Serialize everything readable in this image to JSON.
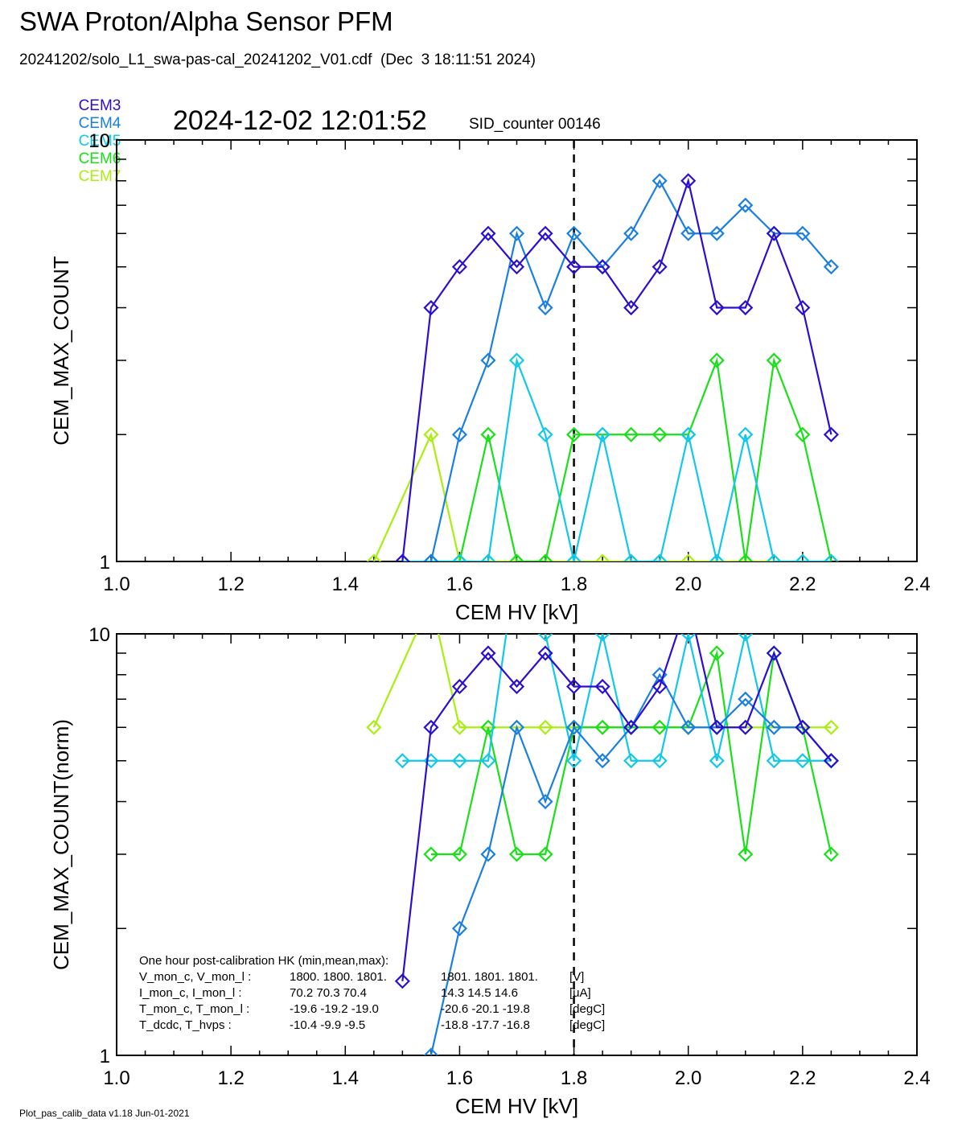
{
  "title": "SWA Proton/Alpha Sensor PFM",
  "file_info": "20241202/solo_L1_swa-pas-cal_20241202_V01.cdf  (Dec  3 18:11:51 2024)",
  "timestamp": "2024-12-02 12:01:52",
  "sid_counter": "SID_counter 00146",
  "footer": "Plot_pas_calib_data v1.18 Jun-01-2021",
  "legend": [
    {
      "name": "CEM3",
      "color": "#2a0fd0"
    },
    {
      "name": "CEM4",
      "color": "#1a7fe0"
    },
    {
      "name": "CEM5",
      "color": "#12c8e8"
    },
    {
      "name": "CEM6",
      "color": "#19e019"
    },
    {
      "name": "CEM7",
      "color": "#aaee10"
    }
  ],
  "hk": {
    "heading": "One hour post-calibration HK (min,mean,max):",
    "rows": [
      {
        "label": "V_mon_c, V_mon_l :",
        "c": "1800.  1800.  1801.",
        "l": "1801.  1801.  1801.",
        "unit": "[V]"
      },
      {
        "label": "I_mon_c,  I_mon_l :",
        "c": "70.2   70.3   70.4",
        "l": "14.3   14.5   14.6",
        "unit": "[uA]"
      },
      {
        "label": "T_mon_c, T_mon_l :",
        "c": "-19.6  -19.2  -19.0",
        "l": "-20.6  -20.1  -19.8",
        "unit": "[degC]"
      },
      {
        "label": "T_dcdc,    T_hvps :",
        "c": "-10.4   -9.9   -9.5",
        "l": "-18.8  -17.7  -16.8",
        "unit": "[degC]"
      }
    ]
  },
  "chart_data": [
    {
      "type": "line",
      "xlabel": "CEM HV [kV]",
      "ylabel": "CEM_MAX_COUNT",
      "xlim": [
        1.0,
        2.4
      ],
      "ylim": [
        1,
        10
      ],
      "yscale": "log",
      "xticks": [
        "1.0",
        "1.2",
        "1.4",
        "1.6",
        "1.8",
        "2.0",
        "2.2",
        "2.4"
      ],
      "yticks": [
        "1",
        "10"
      ],
      "vline": 1.8,
      "x": [
        1.45,
        1.5,
        1.55,
        1.6,
        1.65,
        1.7,
        1.75,
        1.8,
        1.85,
        1.9,
        1.95,
        2.0,
        2.05,
        2.1,
        2.15,
        2.2,
        2.25
      ],
      "series": [
        {
          "name": "CEM3",
          "color": "#2a0fd0",
          "values": [
            null,
            1,
            4,
            5,
            6,
            5,
            6,
            5,
            5,
            4,
            5,
            8,
            4,
            4,
            6,
            4,
            2
          ]
        },
        {
          "name": "CEM4",
          "color": "#1a7fe0",
          "values": [
            null,
            null,
            1,
            2,
            3,
            6,
            4,
            6,
            5,
            6,
            8,
            6,
            6,
            7,
            6,
            6,
            5
          ]
        },
        {
          "name": "CEM5",
          "color": "#12c8e8",
          "values": [
            null,
            1,
            1,
            1,
            1,
            3,
            2,
            1,
            2,
            1,
            1,
            2,
            1,
            2,
            1,
            1,
            1
          ]
        },
        {
          "name": "CEM6",
          "color": "#19e019",
          "values": [
            null,
            null,
            1,
            1,
            2,
            1,
            1,
            2,
            2,
            2,
            2,
            2,
            3,
            1,
            3,
            2,
            1
          ]
        },
        {
          "name": "CEM7",
          "color": "#aaee10",
          "values": [
            1,
            null,
            2,
            1,
            1,
            1,
            1,
            1,
            1,
            1,
            1,
            1,
            1,
            1,
            1,
            1,
            1
          ]
        }
      ]
    },
    {
      "type": "line",
      "xlabel": "CEM HV [kV]",
      "ylabel": "CEM_MAX_COUNT(norm)",
      "xlim": [
        1.0,
        2.4
      ],
      "ylim": [
        1,
        10
      ],
      "yscale": "log",
      "xticks": [
        "1.0",
        "1.2",
        "1.4",
        "1.6",
        "1.8",
        "2.0",
        "2.2",
        "2.4"
      ],
      "yticks": [
        "1",
        "10"
      ],
      "vline": 1.8,
      "x": [
        1.45,
        1.5,
        1.55,
        1.6,
        1.65,
        1.7,
        1.75,
        1.8,
        1.85,
        1.9,
        1.95,
        2.0,
        2.05,
        2.1,
        2.15,
        2.2,
        2.25
      ],
      "series": [
        {
          "name": "CEM3",
          "color": "#2a0fd0",
          "values": [
            null,
            1.5,
            6,
            7.5,
            9,
            7.5,
            9,
            7.5,
            7.5,
            6,
            7.5,
            12,
            6,
            6,
            9,
            6,
            5
          ]
        },
        {
          "name": "CEM4",
          "color": "#1a7fe0",
          "values": [
            null,
            null,
            1,
            2,
            3,
            6,
            4,
            6,
            5,
            6,
            8,
            6,
            6,
            7,
            6,
            6,
            5
          ]
        },
        {
          "name": "CEM5",
          "color": "#12c8e8",
          "values": [
            null,
            5,
            5,
            5,
            5,
            15,
            10,
            5,
            10,
            5,
            5,
            10,
            5,
            10,
            5,
            5,
            5
          ]
        },
        {
          "name": "CEM6",
          "color": "#19e019",
          "values": [
            null,
            null,
            3,
            3,
            6,
            3,
            3,
            6,
            6,
            6,
            6,
            6,
            9,
            3,
            9,
            6,
            3
          ]
        },
        {
          "name": "CEM7",
          "color": "#aaee10",
          "values": [
            6,
            null,
            12,
            6,
            6,
            6,
            6,
            6,
            6,
            6,
            6,
            6,
            6,
            6,
            6,
            6,
            6
          ]
        }
      ]
    }
  ]
}
